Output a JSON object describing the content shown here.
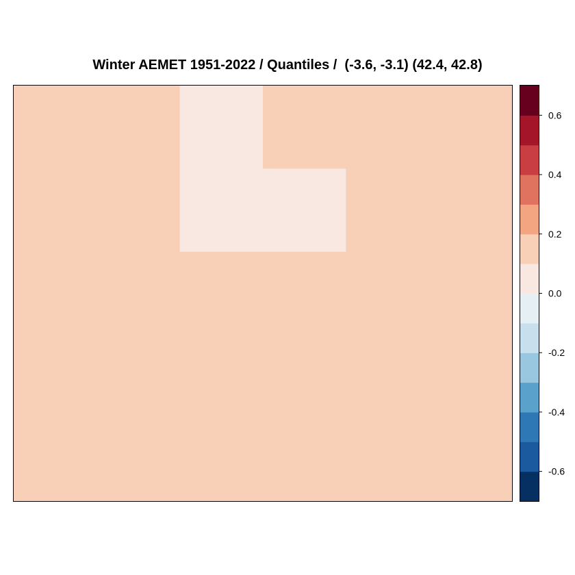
{
  "chart_data": {
    "type": "heatmap",
    "title": "Winter AEMET 1951-2022 / Quantiles /  (-3.6, -3.1) (42.4, 42.8)",
    "xlabel": "",
    "ylabel": "",
    "grid": false,
    "legend": "right",
    "columns": 6,
    "rows": 5,
    "cells": [
      [
        0.15,
        0.15,
        0.05,
        0.15,
        0.15,
        0.15
      ],
      [
        0.15,
        0.15,
        0.05,
        0.05,
        0.15,
        0.15
      ],
      [
        0.15,
        0.15,
        0.15,
        0.15,
        0.15,
        0.15
      ],
      [
        0.15,
        0.15,
        0.15,
        0.15,
        0.15,
        0.15
      ],
      [
        0.15,
        0.15,
        0.15,
        0.15,
        0.15,
        0.15
      ]
    ],
    "colorbar": {
      "range": [
        -0.7,
        0.7
      ],
      "breaks": [
        -0.7,
        -0.6,
        -0.5,
        -0.4,
        -0.3,
        -0.2,
        -0.1,
        0.0,
        0.1,
        0.2,
        0.3,
        0.4,
        0.5,
        0.6,
        0.7
      ],
      "colors": [
        "#053061",
        "#1b5a9e",
        "#2e78b6",
        "#5aa1cc",
        "#98c7df",
        "#c8e0ed",
        "#e6eff4",
        "#f8e8e1",
        "#f8d0b8",
        "#f3a581",
        "#df735f",
        "#c93e43",
        "#a41529",
        "#67001f"
      ],
      "tick_values": [
        -0.6,
        -0.4,
        -0.2,
        0.0,
        0.2,
        0.4,
        0.6
      ],
      "tick_labels": [
        "-0.6",
        "-0.4",
        "-0.2",
        "0.0",
        "0.2",
        "0.4",
        "0.6"
      ]
    }
  }
}
